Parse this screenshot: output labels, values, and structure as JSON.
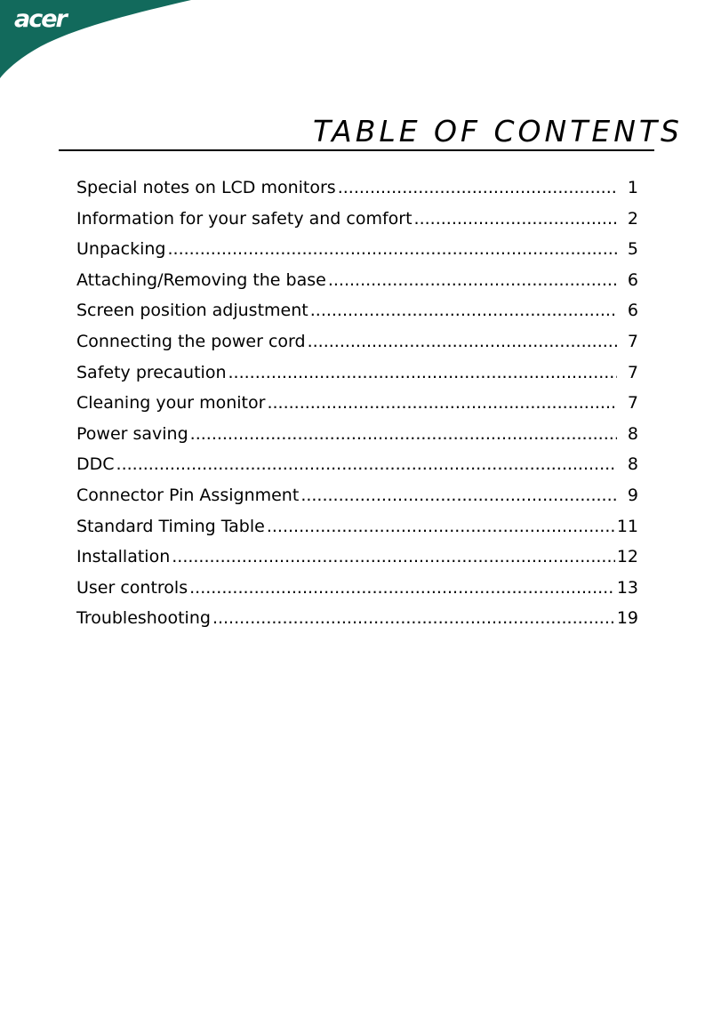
{
  "header": {
    "logo": "acer",
    "brand_color": "#126a5c"
  },
  "title": "TABLE OF CONTENTS",
  "entries": [
    {
      "label": "Special notes on LCD monitors",
      "page": "1"
    },
    {
      "label": "Information for your safety and comfort",
      "page": "2"
    },
    {
      "label": "Unpacking",
      "page": "5"
    },
    {
      "label": "Attaching/Removing the base",
      "page": "6"
    },
    {
      "label": "Screen position adjustment",
      "page": "6"
    },
    {
      "label": "Connecting the power cord",
      "page": "7"
    },
    {
      "label": "Safety precaution",
      "page": "7"
    },
    {
      "label": "Cleaning your monitor",
      "page": "7"
    },
    {
      "label": "Power saving",
      "page": "8"
    },
    {
      "label": "DDC",
      "page": "8"
    },
    {
      "label": "Connector Pin Assignment",
      "page": "9"
    },
    {
      "label": "Standard Timing Table",
      "page": "11"
    },
    {
      "label": "Installation",
      "page": "12"
    },
    {
      "label": "User controls",
      "page": "13"
    },
    {
      "label": "Troubleshooting",
      "page": "19"
    }
  ]
}
